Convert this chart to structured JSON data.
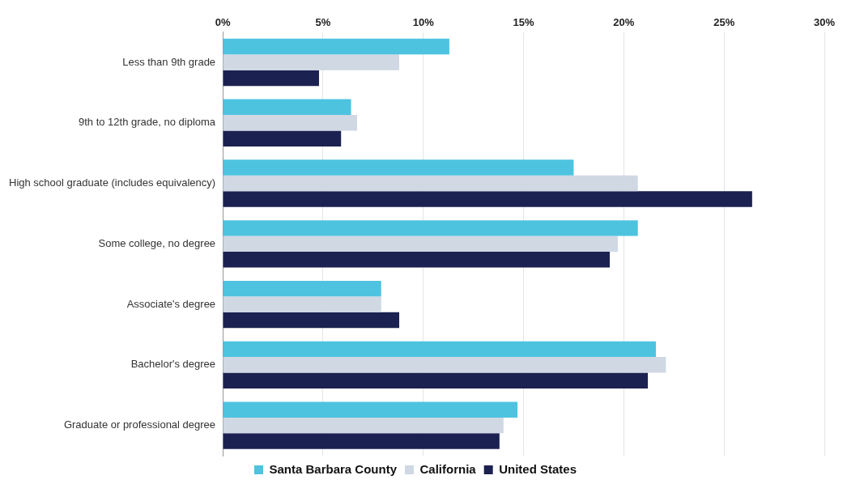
{
  "chart_data": {
    "type": "bar",
    "orientation": "horizontal",
    "categories": [
      "Less than 9th grade",
      "9th to 12th grade, no diploma",
      "High school graduate (includes equivalency)",
      "Some college, no degree",
      "Associate's degree",
      "Bachelor's degree",
      "Graduate or professional degree"
    ],
    "series": [
      {
        "name": "Santa Barbara County",
        "color": "#4dc3e0",
        "values": [
          11.3,
          6.4,
          17.5,
          20.7,
          7.9,
          21.6,
          14.7
        ]
      },
      {
        "name": "California",
        "color": "#cfd8e3",
        "values": [
          8.8,
          6.7,
          20.7,
          19.7,
          7.9,
          22.1,
          14.0
        ]
      },
      {
        "name": "United States",
        "color": "#1b2150",
        "values": [
          4.8,
          5.9,
          26.4,
          19.3,
          8.8,
          21.2,
          13.8
        ]
      }
    ],
    "xlim": [
      0,
      30
    ],
    "xticks": [
      {
        "value": 0,
        "label": "0%"
      },
      {
        "value": 5,
        "label": "5%"
      },
      {
        "value": 10,
        "label": "10%"
      },
      {
        "value": 15,
        "label": "15%"
      },
      {
        "value": 20,
        "label": "20%"
      },
      {
        "value": 25,
        "label": "25%"
      },
      {
        "value": 30,
        "label": "30%"
      }
    ],
    "grid": "x",
    "legend": "bottom"
  }
}
